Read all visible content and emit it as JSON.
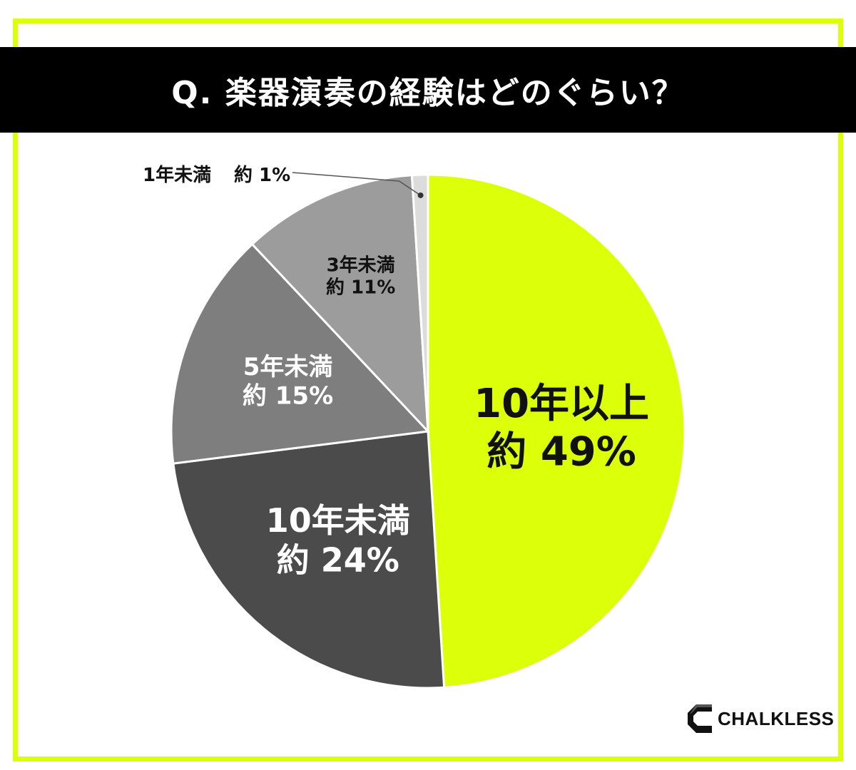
{
  "title": "Q. 楽器演奏の経験はどのぐらい？",
  "brand": "CHALKLESS",
  "colors": {
    "accent": "#dcff0a",
    "banner": "#000000"
  },
  "chart_data": {
    "type": "pie",
    "start_angle_deg": 0,
    "direction": "clockwise",
    "slices": [
      {
        "label": "10年以上",
        "value_text": "約 49%",
        "value": 49,
        "color": "#dcff0a",
        "text_color": "#111111"
      },
      {
        "label": "10年未満",
        "value_text": "約 24%",
        "value": 24,
        "color": "#4b4b4b",
        "text_color": "#ffffff"
      },
      {
        "label": "5年未満",
        "value_text": "約 15%",
        "value": 15,
        "color": "#7e7e7e",
        "text_color": "#ffffff"
      },
      {
        "label": "3年未満",
        "value_text": "約 11%",
        "value": 11,
        "color": "#9c9c9c",
        "text_color": "#111111"
      },
      {
        "label": "1年未満",
        "value_text": "約 1%",
        "value": 1,
        "color": "#dcdcdc",
        "text_color": "#111111"
      }
    ]
  }
}
